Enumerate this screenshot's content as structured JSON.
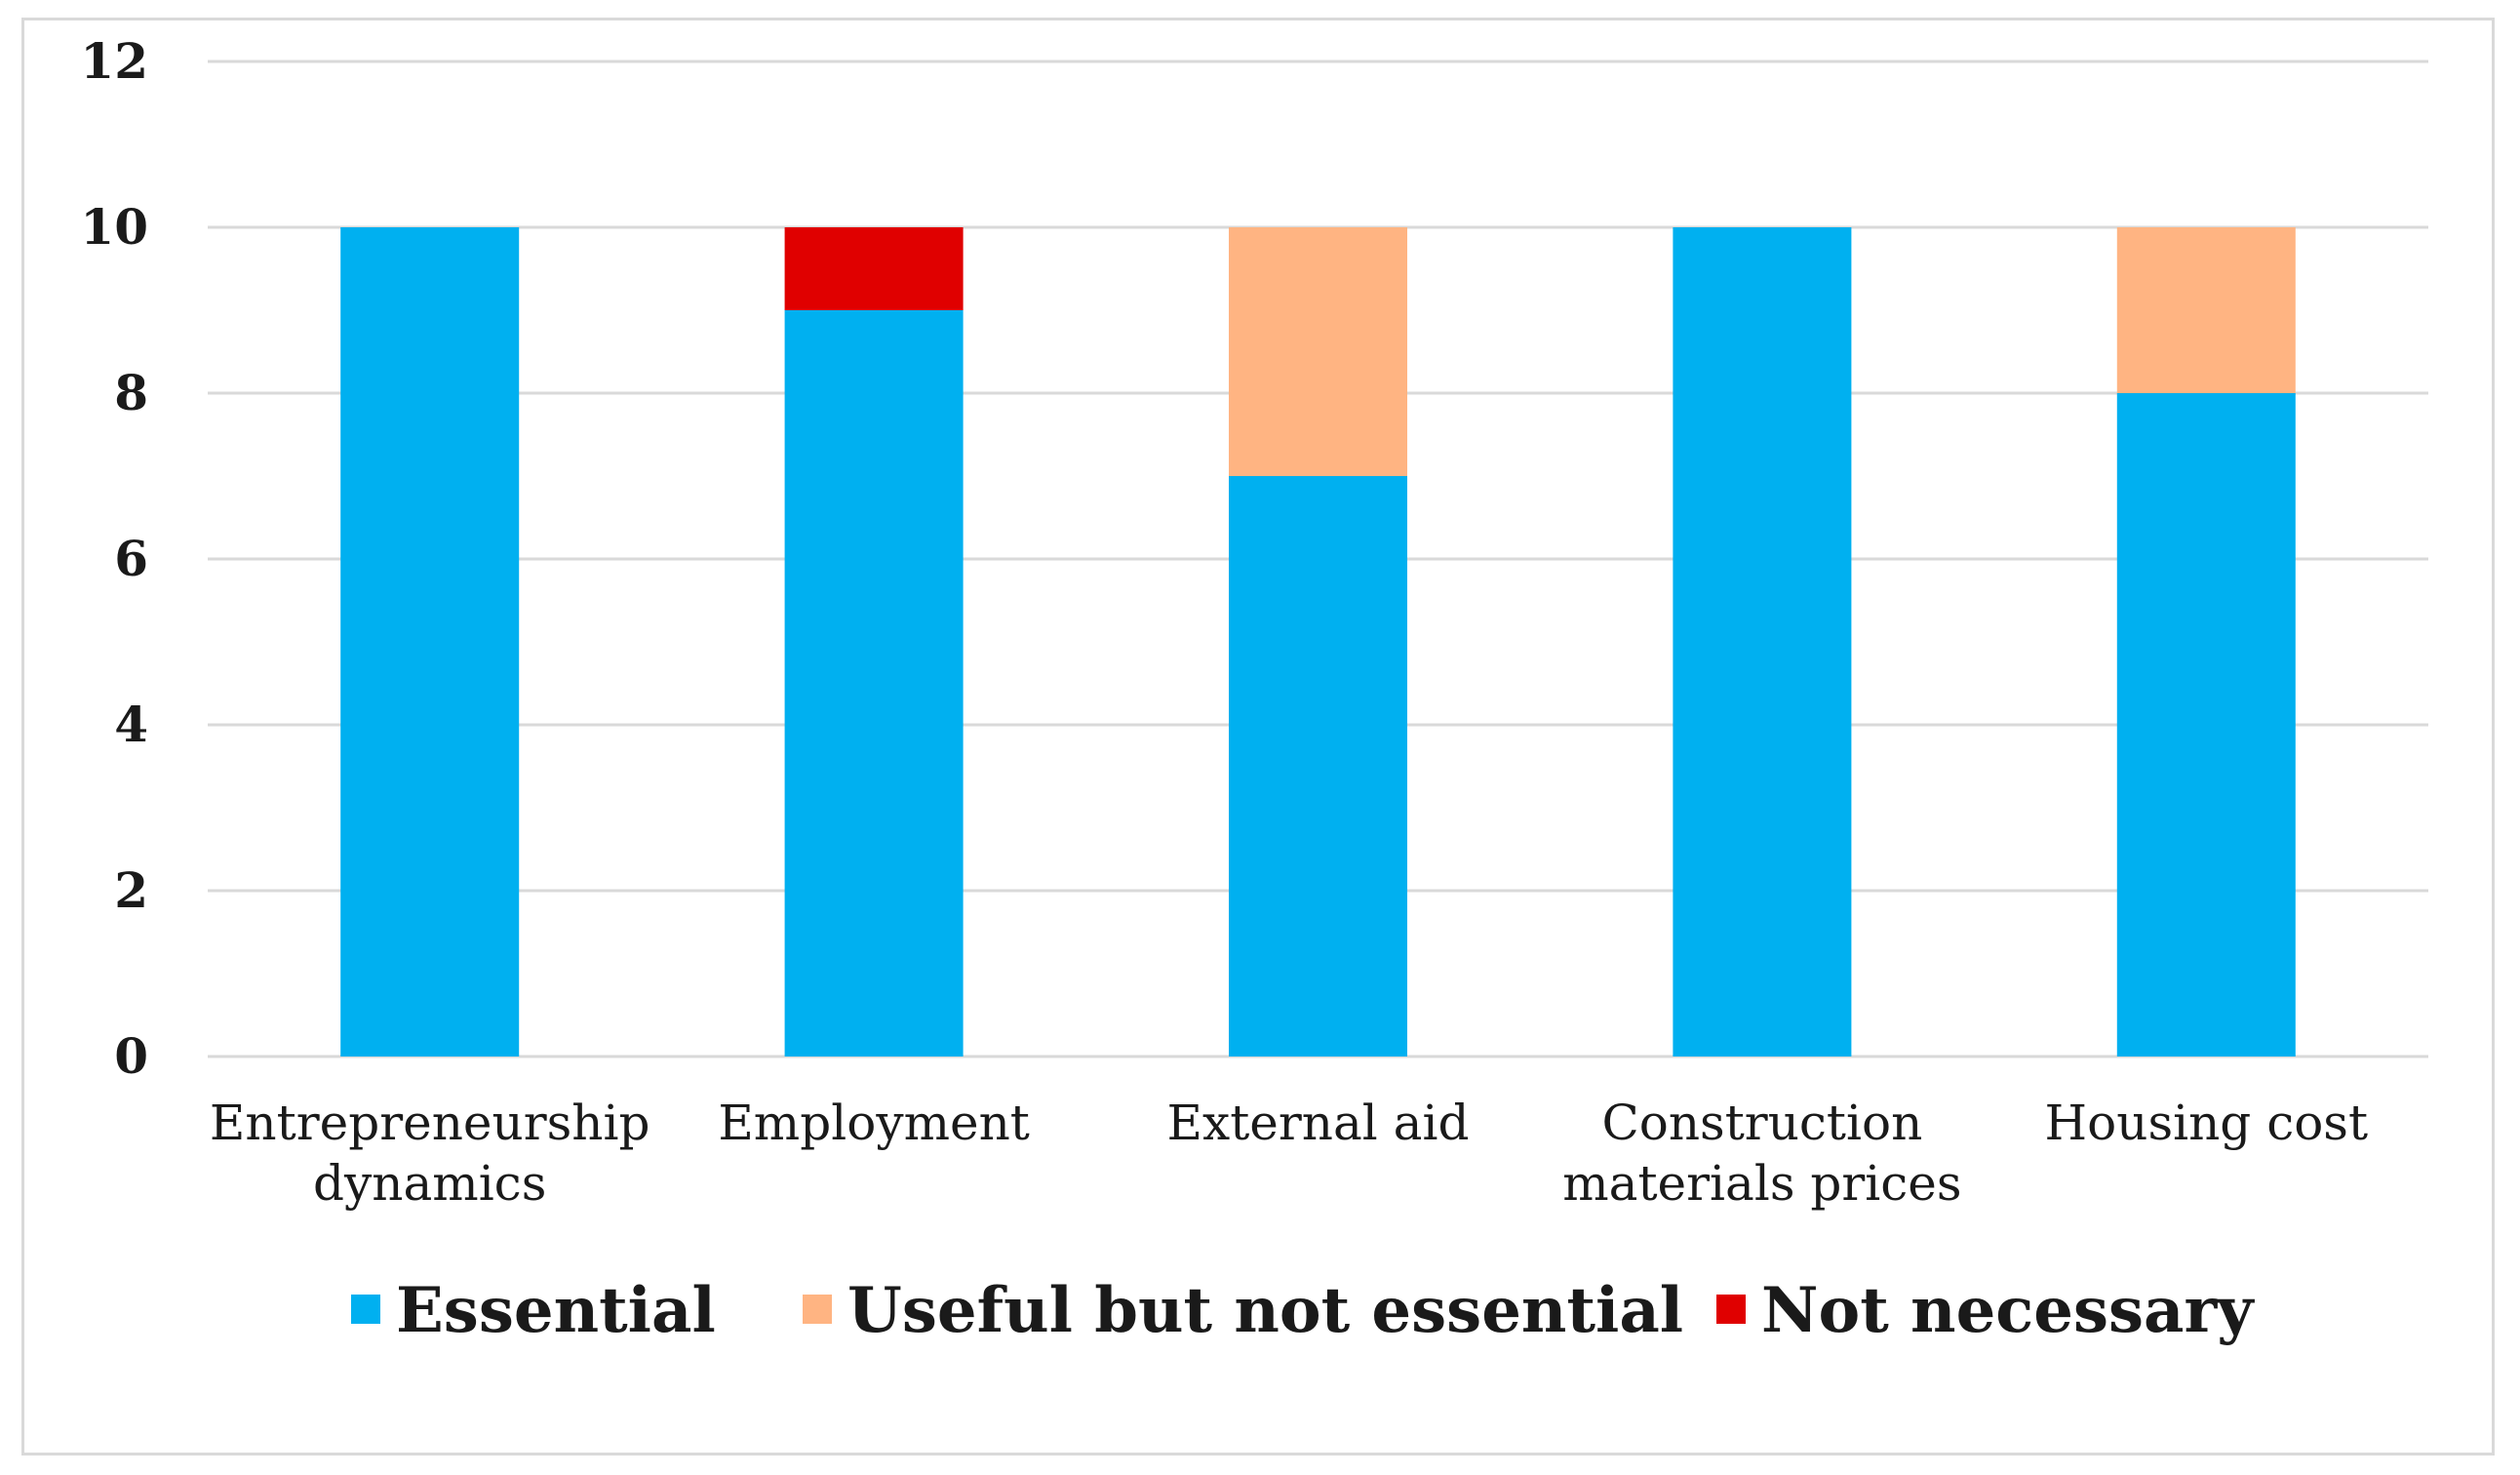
{
  "chart_data": {
    "type": "bar",
    "stacked": true,
    "title": "",
    "xlabel": "",
    "ylabel": "",
    "ylim": [
      0,
      12
    ],
    "yticks": [
      0,
      2,
      4,
      6,
      8,
      10,
      12
    ],
    "grid": true,
    "legend_position": "bottom",
    "categories": [
      [
        "Entrepreneurship",
        "dynamics"
      ],
      [
        "Employment"
      ],
      [
        "External aid"
      ],
      [
        "Construction",
        "materials prices"
      ],
      [
        "Housing cost"
      ]
    ],
    "series": [
      {
        "name": "Essential",
        "color": "#00B0F0",
        "values": [
          10,
          9,
          7,
          10,
          8
        ]
      },
      {
        "name": "Useful but not essential",
        "color": "#FFB482",
        "values": [
          0,
          0,
          3,
          0,
          2
        ]
      },
      {
        "name": "Not necessary",
        "color": "#E00000",
        "values": [
          0,
          1,
          0,
          0,
          0
        ]
      }
    ]
  },
  "colors": {
    "grid": "#d9d9d9",
    "frame": "#d9d9d9",
    "text": "#1a1a1a"
  }
}
